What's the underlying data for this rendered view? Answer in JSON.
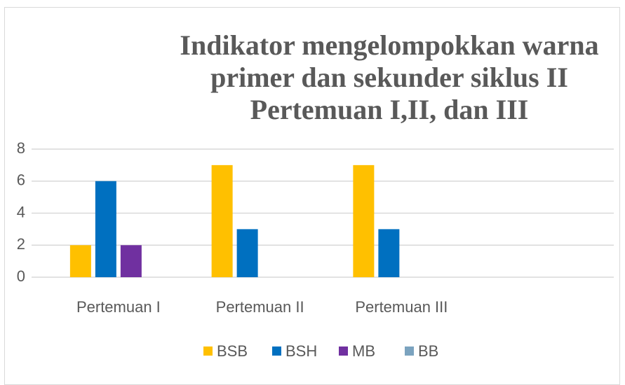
{
  "chart_data": {
    "type": "bar",
    "title": "Indikator mengelompokkan warna primer dan sekunder siklus II Pertemuan I,II, dan III",
    "categories": [
      "Pertemuan I",
      "Pertemuan II",
      "Pertemuan III",
      null
    ],
    "series": [
      {
        "name": "BSB",
        "color": "#ffc000",
        "values": [
          2,
          7,
          7,
          null
        ]
      },
      {
        "name": "BSH",
        "color": "#0070c0",
        "values": [
          6,
          3,
          3,
          null
        ]
      },
      {
        "name": "MB",
        "color": "#7030a0",
        "values": [
          2,
          null,
          null,
          null
        ]
      },
      {
        "name": "BB",
        "color": "#7ba3bf",
        "values": [
          null,
          null,
          null,
          null
        ]
      }
    ],
    "ylim": [
      0,
      8
    ],
    "yticks": [
      0,
      2,
      4,
      6,
      8
    ],
    "grid": true,
    "legend": "bottom"
  }
}
